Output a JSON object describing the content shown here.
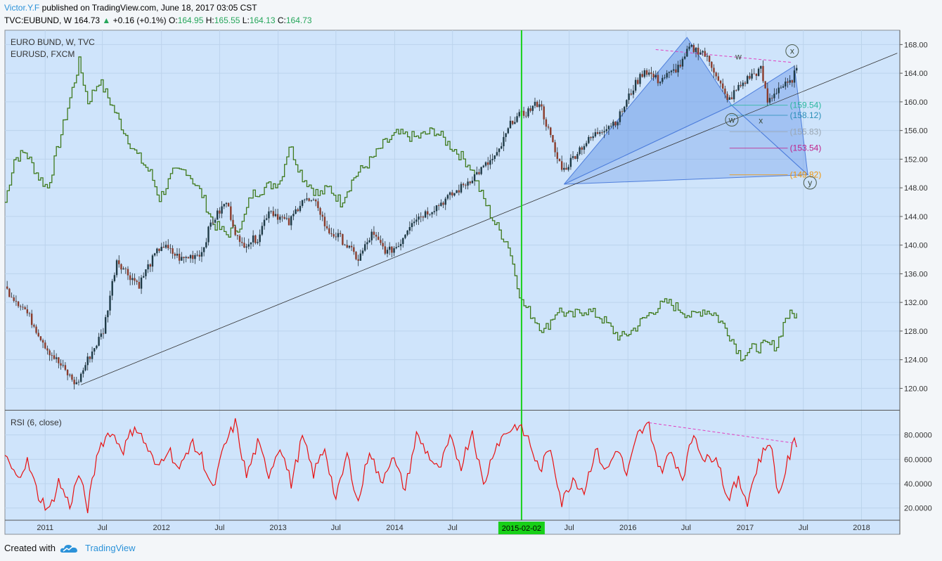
{
  "header": {
    "author": "Victor.Y.F",
    "published": "published on TradingView.com, June 18, 2017 03:05 CST",
    "symbol": "TVC:EUBUND, W",
    "last": "164.73",
    "change": "+0.16 (+0.1%)",
    "o_label": "O:",
    "o": "164.95",
    "h_label": "H:",
    "h": "165.55",
    "l_label": "L:",
    "l": "164.13",
    "c_label": "C:",
    "c": "164.73",
    "up_arrow": "▲"
  },
  "legend": {
    "main": "EURO BUND, W, TVC",
    "compare": "EURUSD, FXCM",
    "rsi": "RSI (6, close)"
  },
  "footer": {
    "created_with": "Created with",
    "brand": "TradingView",
    "logo_icon": "tradingview-cloud-icon"
  },
  "colors": {
    "background": "#cfe4fb",
    "candle_up": "#1e3a46",
    "candle_down": "#8a3b2b",
    "eurusd": "#3f7a1d",
    "rsi": "#e81010",
    "vertical_line": "#18d018",
    "pattern_fill": "#6b9ae8",
    "pattern_dark": "#4f7fdc"
  },
  "chart_data": [
    {
      "type": "line",
      "title": "EURO BUND, W, TVC",
      "y_axis_side": "right",
      "ylim": [
        117,
        170
      ],
      "y_ticks": [
        "168.00",
        "164.00",
        "160.00",
        "156.00",
        "152.00",
        "148.00",
        "144.00",
        "140.00",
        "136.00",
        "132.00",
        "128.00",
        "124.00",
        "120.00"
      ],
      "x_ticks": [
        "2011",
        "Jul",
        "2012",
        "Jul",
        "2013",
        "Jul",
        "2014",
        "Jul",
        "2015-02-02",
        "Jul",
        "2016",
        "Jul",
        "2017",
        "Jul",
        "2018"
      ],
      "xlim": [
        "2010-08-30",
        "2018-05-01"
      ],
      "series": [
        {
          "name": "EURO BUND",
          "style": "candles",
          "points": [
            [
              "2010-08-30",
              134
            ],
            [
              "2010-11-01",
              131
            ],
            [
              "2011-01-10",
              125.5
            ],
            [
              "2011-03-14",
              122
            ],
            [
              "2011-04-11",
              120.5
            ],
            [
              "2011-05-16",
              124
            ],
            [
              "2011-07-04",
              128
            ],
            [
              "2011-08-15",
              138
            ],
            [
              "2011-09-19",
              136
            ],
            [
              "2011-10-24",
              134.5
            ],
            [
              "2011-11-21",
              137
            ],
            [
              "2012-01-02",
              140
            ],
            [
              "2012-03-05",
              138
            ],
            [
              "2012-05-07",
              139
            ],
            [
              "2012-06-04",
              143
            ],
            [
              "2012-07-23",
              146
            ],
            [
              "2012-09-03",
              140
            ],
            [
              "2012-10-29",
              141
            ],
            [
              "2012-12-03",
              145
            ],
            [
              "2013-02-04",
              143
            ],
            [
              "2013-03-18",
              146.5
            ],
            [
              "2013-05-06",
              145.5
            ],
            [
              "2013-06-03",
              142
            ],
            [
              "2013-07-15",
              141
            ],
            [
              "2013-09-09",
              138
            ],
            [
              "2013-10-21",
              141.5
            ],
            [
              "2013-12-09",
              139
            ],
            [
              "2014-01-13",
              140
            ],
            [
              "2014-02-24",
              143.5
            ],
            [
              "2014-04-28",
              145
            ],
            [
              "2014-07-14",
              147.5
            ],
            [
              "2014-09-15",
              150
            ],
            [
              "2014-11-17",
              152.5
            ],
            [
              "2015-01-05",
              157.5
            ],
            [
              "2015-02-16",
              158.5
            ],
            [
              "2015-03-30",
              160
            ],
            [
              "2015-04-27",
              156
            ],
            [
              "2015-05-25",
              152
            ],
            [
              "2015-06-15",
              150.5
            ],
            [
              "2015-08-03",
              153.5
            ],
            [
              "2015-10-05",
              156
            ],
            [
              "2015-11-30",
              157.5
            ],
            [
              "2016-01-18",
              162
            ],
            [
              "2016-02-22",
              164.5
            ],
            [
              "2016-04-04",
              163
            ],
            [
              "2016-05-16",
              164
            ],
            [
              "2016-06-20",
              165.5
            ],
            [
              "2016-07-11",
              167.5
            ],
            [
              "2016-08-22",
              167
            ],
            [
              "2016-10-03",
              164
            ],
            [
              "2016-11-07",
              160
            ],
            [
              "2016-12-12",
              162
            ],
            [
              "2017-01-16",
              163.5
            ],
            [
              "2017-02-20",
              164.5
            ],
            [
              "2017-03-13",
              160
            ],
            [
              "2017-04-17",
              162
            ],
            [
              "2017-05-22",
              162.5
            ],
            [
              "2017-06-12",
              164.73
            ]
          ]
        },
        {
          "name": "EURUSD, FXCM",
          "style": "step-line",
          "points": [
            [
              "2010-08-30",
              146
            ],
            [
              "2010-09-27",
              152
            ],
            [
              "2010-11-01",
              153
            ],
            [
              "2010-12-13",
              149.5
            ],
            [
              "2011-01-10",
              148
            ],
            [
              "2011-03-07",
              158
            ],
            [
              "2011-04-18",
              165.5
            ],
            [
              "2011-05-16",
              160
            ],
            [
              "2011-06-20",
              163
            ],
            [
              "2011-07-25",
              160
            ],
            [
              "2011-09-05",
              156
            ],
            [
              "2011-10-10",
              153
            ],
            [
              "2011-11-28",
              150
            ],
            [
              "2011-12-26",
              146.5
            ],
            [
              "2012-02-06",
              150
            ],
            [
              "2012-03-19",
              150.5
            ],
            [
              "2012-05-07",
              147
            ],
            [
              "2012-06-11",
              143
            ],
            [
              "2012-07-23",
              141.5
            ],
            [
              "2012-09-10",
              143
            ],
            [
              "2012-10-08",
              147
            ],
            [
              "2012-11-19",
              148
            ],
            [
              "2013-01-07",
              149
            ],
            [
              "2013-02-04",
              154
            ],
            [
              "2013-03-18",
              149.5
            ],
            [
              "2013-05-06",
              147
            ],
            [
              "2013-06-10",
              148
            ],
            [
              "2013-07-15",
              146
            ],
            [
              "2013-08-26",
              149.5
            ],
            [
              "2013-10-21",
              152
            ],
            [
              "2013-11-25",
              154
            ],
            [
              "2014-01-06",
              155.5
            ],
            [
              "2014-03-10",
              155
            ],
            [
              "2014-05-05",
              156
            ],
            [
              "2014-06-09",
              154.5
            ],
            [
              "2014-07-14",
              153
            ],
            [
              "2014-08-25",
              151
            ],
            [
              "2014-09-29",
              147
            ],
            [
              "2014-11-10",
              143
            ],
            [
              "2014-12-22",
              140
            ],
            [
              "2015-02-02",
              132
            ],
            [
              "2015-03-09",
              130
            ],
            [
              "2015-04-13",
              128
            ],
            [
              "2015-05-25",
              131
            ],
            [
              "2015-07-06",
              130
            ],
            [
              "2015-08-17",
              131
            ],
            [
              "2015-10-05",
              130
            ],
            [
              "2015-12-07",
              127
            ],
            [
              "2016-01-11",
              128
            ],
            [
              "2016-02-15",
              129.5
            ],
            [
              "2016-03-21",
              131
            ],
            [
              "2016-05-02",
              132
            ],
            [
              "2016-06-13",
              131
            ],
            [
              "2016-07-18",
              130
            ],
            [
              "2016-08-22",
              131
            ],
            [
              "2016-09-26",
              130.5
            ],
            [
              "2016-11-07",
              128
            ],
            [
              "2016-12-19",
              124.5
            ],
            [
              "2017-01-23",
              125.5
            ],
            [
              "2017-03-06",
              126
            ],
            [
              "2017-04-10",
              126
            ],
            [
              "2017-05-08",
              130
            ],
            [
              "2017-06-12",
              130.5
            ]
          ]
        }
      ],
      "annotations": {
        "vertical_line_date": "2015-02-02",
        "trend_line": [
          [
            "2011-04-25",
            120.5
          ],
          [
            "2018-04-23",
            166.8
          ]
        ],
        "pattern_points": [
          {
            "label": "",
            "date": "2015-06-15",
            "price": 148.5
          },
          {
            "label": "",
            "date": "2016-07-04",
            "price": 169
          },
          {
            "label": "w",
            "date": "2016-11-21",
            "price": 159.5
          },
          {
            "label": "x",
            "date": "2017-06-05",
            "price": 165
          },
          {
            "label": "y",
            "date": "2017-07-17",
            "price": 149.82
          }
        ],
        "circle_labels": [
          {
            "label": "x",
            "date": "2017-05-29",
            "price": 167.1
          },
          {
            "label": "w",
            "date": "2016-11-21",
            "price": 157.5
          },
          {
            "label": "y",
            "date": "2017-07-24",
            "price": 148.7
          }
        ],
        "plain_labels": [
          {
            "label": "w",
            "date": "2016-12-12",
            "price": 166.3
          },
          {
            "label": "x",
            "date": "2017-02-20",
            "price": 157.4
          }
        ],
        "fib_levels": [
          {
            "label": "(159.54)",
            "value": 159.54,
            "color": "#2bb8a0"
          },
          {
            "label": "(158.12)",
            "value": 158.12,
            "color": "#2a8fb8"
          },
          {
            "label": "(155.83)",
            "value": 155.83,
            "color": "#9aa6b2"
          },
          {
            "label": "(153.54)",
            "value": 153.54,
            "color": "#c0208a"
          },
          {
            "label": "(149.82)",
            "value": 149.82,
            "color": "#f0960a"
          }
        ],
        "resistance_line": [
          [
            "2016-03-28",
            167.3
          ],
          [
            "2017-05-29",
            165.5
          ]
        ]
      }
    },
    {
      "type": "line",
      "title": "RSI (6, close)",
      "ylim": [
        10,
        100
      ],
      "y_ticks": [
        "80.0000",
        "60.0000",
        "40.0000",
        "20.0000"
      ],
      "series": [
        {
          "name": "RSI (6, close)",
          "points": [
            [
              "2010-08-30",
              63
            ],
            [
              "2010-10-04",
              45
            ],
            [
              "2010-11-08",
              58
            ],
            [
              "2010-12-13",
              30
            ],
            [
              "2011-01-17",
              18
            ],
            [
              "2011-02-14",
              42
            ],
            [
              "2011-03-21",
              22
            ],
            [
              "2011-04-18",
              48
            ],
            [
              "2011-05-16",
              20
            ],
            [
              "2011-06-20",
              70
            ],
            [
              "2011-07-25",
              83
            ],
            [
              "2011-09-05",
              68
            ],
            [
              "2011-10-10",
              88
            ],
            [
              "2011-11-14",
              72
            ],
            [
              "2011-12-19",
              52
            ],
            [
              "2012-01-23",
              70
            ],
            [
              "2012-02-27",
              50
            ],
            [
              "2012-04-02",
              74
            ],
            [
              "2012-05-07",
              62
            ],
            [
              "2012-06-11",
              34
            ],
            [
              "2012-07-16",
              70
            ],
            [
              "2012-08-20",
              90
            ],
            [
              "2012-09-24",
              46
            ],
            [
              "2012-10-29",
              73
            ],
            [
              "2012-12-03",
              48
            ],
            [
              "2013-01-07",
              72
            ],
            [
              "2013-02-11",
              40
            ],
            [
              "2013-03-18",
              78
            ],
            [
              "2013-04-22",
              48
            ],
            [
              "2013-05-27",
              70
            ],
            [
              "2013-07-01",
              26
            ],
            [
              "2013-08-05",
              64
            ],
            [
              "2013-09-09",
              24
            ],
            [
              "2013-10-14",
              69
            ],
            [
              "2013-11-18",
              40
            ],
            [
              "2013-12-23",
              63
            ],
            [
              "2014-02-03",
              35
            ],
            [
              "2014-03-10",
              80
            ],
            [
              "2014-04-14",
              65
            ],
            [
              "2014-05-19",
              50
            ],
            [
              "2014-06-23",
              76
            ],
            [
              "2014-07-28",
              55
            ],
            [
              "2014-09-01",
              84
            ],
            [
              "2014-10-06",
              38
            ],
            [
              "2014-11-10",
              70
            ],
            [
              "2014-12-15",
              82
            ],
            [
              "2015-01-19",
              88
            ],
            [
              "2015-02-23",
              77
            ],
            [
              "2015-03-30",
              50
            ],
            [
              "2015-05-04",
              70
            ],
            [
              "2015-06-08",
              24
            ],
            [
              "2015-07-13",
              45
            ],
            [
              "2015-08-17",
              34
            ],
            [
              "2015-09-21",
              68
            ],
            [
              "2015-10-26",
              50
            ],
            [
              "2015-11-30",
              70
            ],
            [
              "2015-12-28",
              46
            ],
            [
              "2016-02-01",
              80
            ],
            [
              "2016-03-07",
              88
            ],
            [
              "2016-04-11",
              50
            ],
            [
              "2016-05-16",
              66
            ],
            [
              "2016-06-20",
              45
            ],
            [
              "2016-07-25",
              82
            ],
            [
              "2016-08-29",
              58
            ],
            [
              "2016-10-03",
              65
            ],
            [
              "2016-11-07",
              28
            ],
            [
              "2016-12-12",
              42
            ],
            [
              "2017-01-09",
              26
            ],
            [
              "2017-02-13",
              58
            ],
            [
              "2017-03-20",
              76
            ],
            [
              "2017-04-17",
              30
            ],
            [
              "2017-05-15",
              58
            ],
            [
              "2017-06-05",
              74
            ],
            [
              "2017-06-12",
              70
            ]
          ]
        }
      ],
      "annotations": {
        "divergence_line": [
          [
            "2016-03-07",
            90
          ],
          [
            "2017-06-12",
            73
          ]
        ]
      }
    }
  ]
}
